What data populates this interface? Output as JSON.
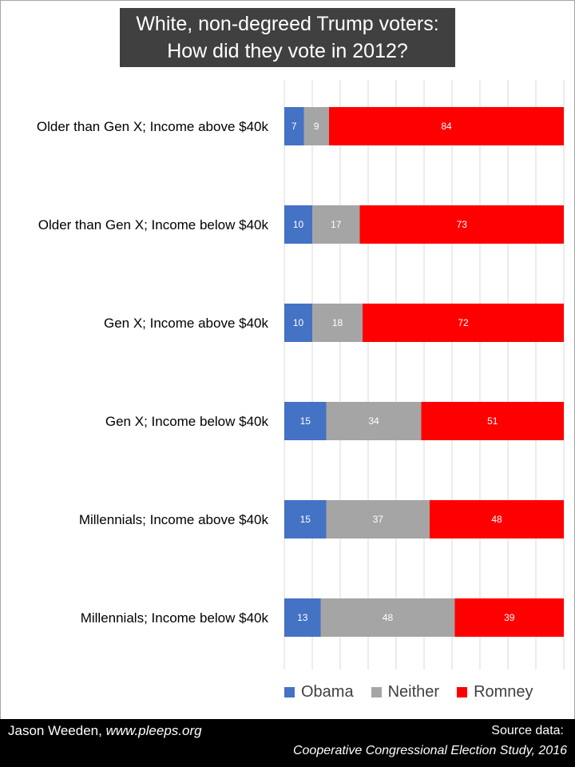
{
  "title": {
    "line1": "White, non-degreed Trump voters:",
    "line2": "How did they vote in 2012?"
  },
  "chart_data": {
    "type": "bar",
    "orientation": "horizontal",
    "stacked": true,
    "categories": [
      "Older than Gen X; Income above $40k",
      "Older than Gen X; Income below $40k",
      "Gen X; Income above $40k",
      "Gen X; Income below $40k",
      "Millennials; Income above $40k",
      "Millennials; Income below $40k"
    ],
    "series": [
      {
        "name": "Obama",
        "color": "#4472c4",
        "label_color": "#ffffff",
        "values": [
          7,
          10,
          10,
          15,
          15,
          13
        ]
      },
      {
        "name": "Neither",
        "color": "#a5a5a5",
        "label_color": "#ffffff",
        "values": [
          9,
          17,
          18,
          34,
          37,
          48
        ]
      },
      {
        "name": "Romney",
        "color": "#ff0000",
        "label_color": "#ffffff",
        "values": [
          84,
          73,
          72,
          51,
          48,
          39
        ]
      }
    ],
    "xlim": [
      0,
      100
    ],
    "grid": true,
    "legend": "bottom"
  },
  "footer": {
    "author_name": "Jason Weeden,",
    "author_url": "www.pleeps.org",
    "source_label": "Source data:",
    "source_name": "Cooperative Congressional Election Study, 2016"
  }
}
